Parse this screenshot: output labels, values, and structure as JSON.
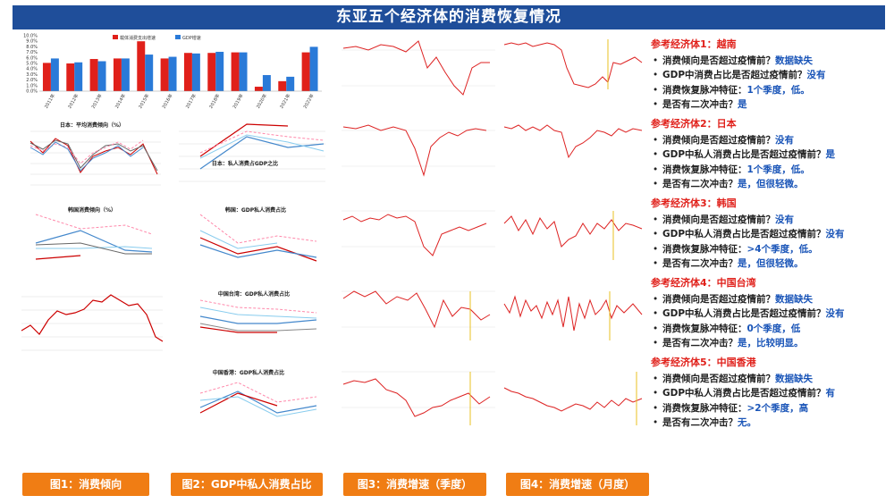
{
  "title": "东亚五个经济体的消费恢复情况",
  "colors": {
    "accent_red": "#e0201a",
    "accent_blue": "#1a55b8",
    "title_bg": "#1f4e9a",
    "button": "#f07d14"
  },
  "top_chart": {
    "legend": [
      "载体消费支出增速",
      "GDP增速"
    ],
    "y_ticks": [
      "10.0%",
      "9.0%",
      "8.0%",
      "7.0%",
      "6.0%",
      "5.0%",
      "4.0%",
      "3.0%",
      "2.0%",
      "1.0%",
      "0.0%"
    ],
    "categories": [
      "2011年",
      "2012年",
      "2013年",
      "2014年",
      "2015年",
      "2016年",
      "2017年",
      "2018年",
      "2019年",
      "2020年",
      "2021年",
      "2022年"
    ],
    "red": [
      5.1,
      5.0,
      5.8,
      5.9,
      9.0,
      5.9,
      6.9,
      6.9,
      7.0,
      0.8,
      1.8,
      7.0
    ],
    "blue": [
      5.9,
      5.2,
      5.4,
      5.9,
      6.6,
      6.2,
      6.8,
      7.1,
      7.0,
      2.9,
      2.6,
      8.0
    ]
  },
  "mini_titles": {
    "japan_propensity": "日本：平均消费倾向（%）",
    "japan_gdp": "日本：私人消费占GDP之比",
    "korea_propensity": "韩国消费倾向（%）",
    "korea_gdp": "韩国：GDP私人消费占比",
    "taiwan_gdp": "中国台湾：GDP私人消费占比",
    "hk_gdp": "中国香港：GDP私人消费占比"
  },
  "sections": [
    {
      "title": "参考经济体1：越南",
      "items": [
        {
          "q": "消费倾向是否超过疫情前？",
          "a": "数据缺失"
        },
        {
          "q": "GDP中消费占比是否超过疫情前？",
          "a": "没有"
        },
        {
          "q": "消费恢复脉冲特征：",
          "a": "1个季度，低。"
        },
        {
          "q": "是否有二次冲击？",
          "a": "是"
        }
      ]
    },
    {
      "title": "参考经济体2：日本",
      "items": [
        {
          "q": "消费倾向是否超过疫情前？",
          "a": "没有"
        },
        {
          "q": "GDP中私人消费占比是否超过疫情前？",
          "a": "是"
        },
        {
          "q": "消费恢复脉冲特征：",
          "a": "1个季度，低。"
        },
        {
          "q": "是否有二次冲击？",
          "a": "是，但很轻微。"
        }
      ]
    },
    {
      "title": "参考经济体3：韩国",
      "items": [
        {
          "q": "消费倾向是否超过疫情前？",
          "a": "没有"
        },
        {
          "q": "GDP中私人消费占比是否超过疫情前？",
          "a": "没有"
        },
        {
          "q": "消费恢复脉冲特征：",
          "a": ">4个季度，低。"
        },
        {
          "q": "是否有二次冲击？",
          "a": "是，但很轻微。"
        }
      ]
    },
    {
      "title": "参考经济体4：中国台湾",
      "items": [
        {
          "q": "消费倾向是否超过疫情前？",
          "a": "数据缺失"
        },
        {
          "q": "GDP中私人消费占比是否超过疫情前？",
          "a": "没有"
        },
        {
          "q": "消费恢复脉冲特征：",
          "a": "0个季度，低"
        },
        {
          "q": "是否有二次冲击？",
          "a": "是，比较明显。"
        }
      ]
    },
    {
      "title": "参考经济体5：中国香港",
      "items": [
        {
          "q": "消费倾向是否超过疫情前？",
          "a": "数据缺失"
        },
        {
          "q": "GDP中私人消费占比是否超过疫情前？",
          "a": "有"
        },
        {
          "q": "消费恢复脉冲特征：",
          "a": ">2个季度，高"
        },
        {
          "q": "是否有二次冲击？",
          "a": "无。"
        }
      ]
    }
  ],
  "buttons": [
    "图1：消费倾向",
    "图2：GDP中私人消费占比",
    "图3：消费增速（季度）",
    "图4：消费增速（月度）"
  ]
}
